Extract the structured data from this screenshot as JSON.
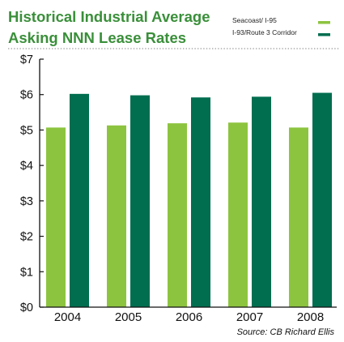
{
  "chart_data": {
    "type": "bar",
    "title_lines": [
      "Historical Industrial Average",
      "Asking NNN Lease Rates"
    ],
    "categories": [
      "2004",
      "2005",
      "2006",
      "2007",
      "2008"
    ],
    "series": [
      {
        "name": "Seacoast/ I-95",
        "color": "#8dc43f",
        "values": [
          5.07,
          5.13,
          5.19,
          5.21,
          5.07
        ]
      },
      {
        "name": "I-93/Route 3 Corridor",
        "color": "#006e4f",
        "values": [
          6.02,
          5.98,
          5.92,
          5.94,
          6.05
        ]
      }
    ],
    "y_tick_labels": [
      "$0",
      "$1",
      "$2",
      "$3",
      "$4",
      "$5",
      "$6",
      "$7"
    ],
    "ylim": [
      0,
      7
    ],
    "grid": false,
    "legend_position": "top-right",
    "source": "Source: CB Richard Ellis"
  },
  "colors": {
    "title": "#3a8f3a",
    "axis": "#111111",
    "dotted_rule": "#9a9a9a"
  }
}
